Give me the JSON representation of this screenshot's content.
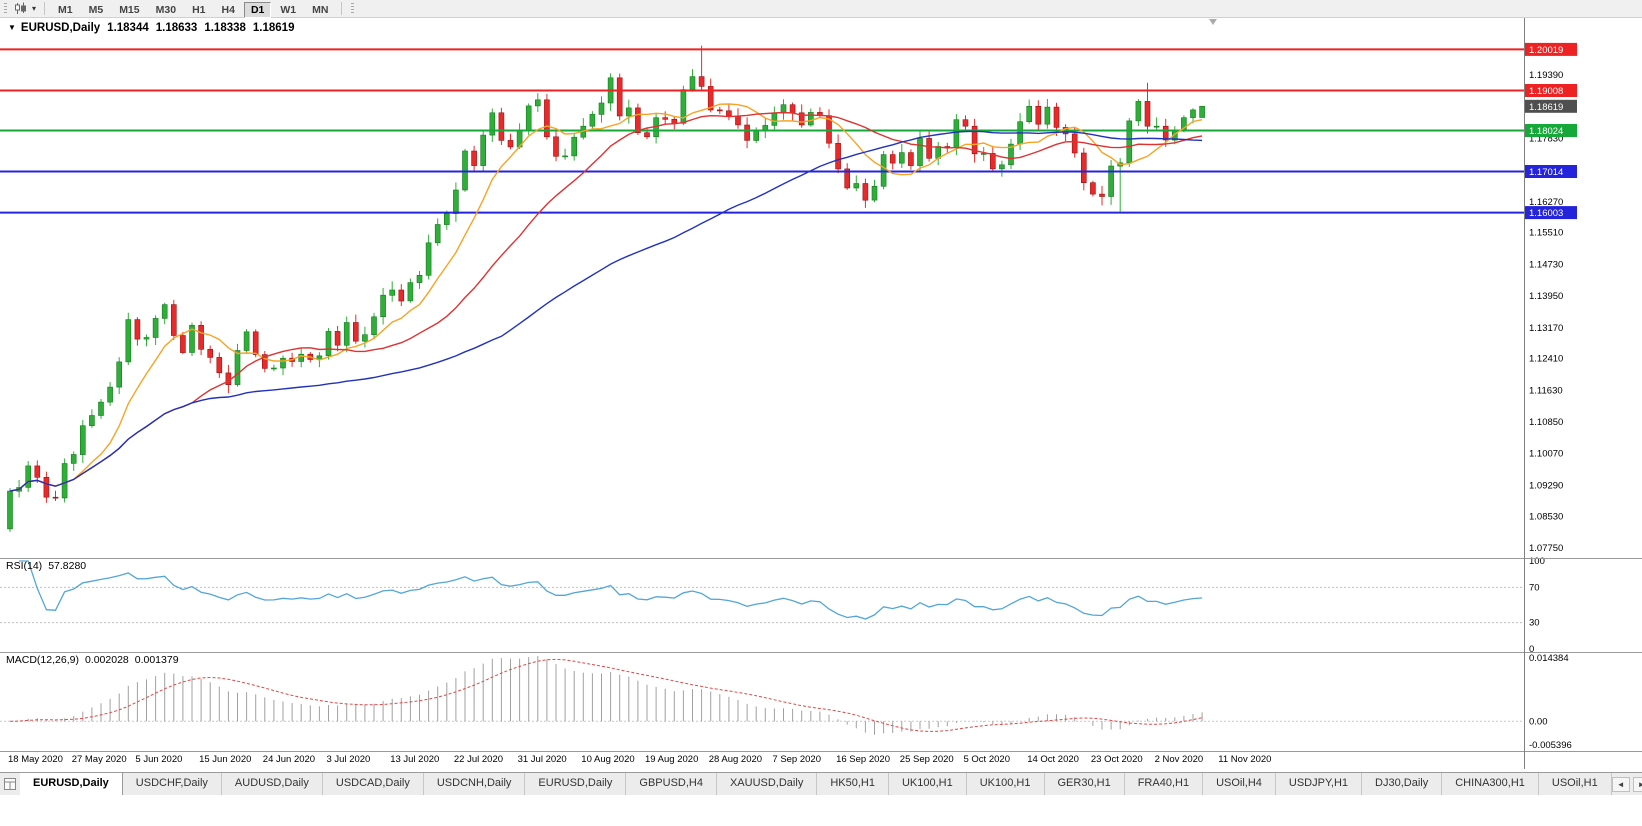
{
  "icons": {
    "title_arrow": "▼",
    "caret": "▾",
    "tab_left": "◄",
    "tab_right": "►"
  },
  "toolbar": {
    "timeframes": [
      {
        "label": "M1",
        "active": false
      },
      {
        "label": "M5",
        "active": false
      },
      {
        "label": "M15",
        "active": false
      },
      {
        "label": "M30",
        "active": false
      },
      {
        "label": "H1",
        "active": false
      },
      {
        "label": "H4",
        "active": false
      },
      {
        "label": "D1",
        "active": true
      },
      {
        "label": "W1",
        "active": false
      },
      {
        "label": "MN",
        "active": false
      }
    ]
  },
  "chart": {
    "title": {
      "symbol": "EURUSD,Daily",
      "open": "1.18344",
      "high": "1.18633",
      "low": "1.18338",
      "close": "1.18619"
    }
  },
  "chart_data": {
    "type": "candlestick",
    "symbol": "EURUSD",
    "timeframe": "Daily",
    "title": "EURUSD,Daily  1.18344 1.18633 1.18338 1.18619",
    "bull_color": "#2fae3a",
    "bull_border": "#157a1e",
    "bear_color": "#ea2a2a",
    "bear_border": "#991111",
    "first_open": 1.0822,
    "closes": [
      1.0915,
      1.0924,
      1.0977,
      1.0949,
      1.09,
      1.0898,
      1.0983,
      1.1005,
      1.1076,
      1.1101,
      1.1134,
      1.1171,
      1.1233,
      1.1337,
      1.1289,
      1.1293,
      1.134,
      1.1374,
      1.1298,
      1.1256,
      1.1323,
      1.1264,
      1.1244,
      1.1206,
      1.1177,
      1.1261,
      1.1307,
      1.1251,
      1.1217,
      1.1218,
      1.1242,
      1.1234,
      1.1252,
      1.1239,
      1.1248,
      1.1308,
      1.1274,
      1.133,
      1.1284,
      1.13,
      1.1344,
      1.1397,
      1.141,
      1.1383,
      1.1428,
      1.1446,
      1.1526,
      1.1571,
      1.1598,
      1.1656,
      1.1752,
      1.1716,
      1.1791,
      1.1846,
      1.1778,
      1.1762,
      1.1803,
      1.1863,
      1.1878,
      1.1787,
      1.1739,
      1.174,
      1.1786,
      1.1813,
      1.1842,
      1.187,
      1.1932,
      1.1838,
      1.1858,
      1.1797,
      1.1787,
      1.1834,
      1.183,
      1.182,
      1.1903,
      1.1935,
      1.1911,
      1.1853,
      1.1851,
      1.1838,
      1.1816,
      1.1778,
      1.1802,
      1.1815,
      1.1845,
      1.1866,
      1.1846,
      1.1816,
      1.1847,
      1.1839,
      1.1771,
      1.1708,
      1.1661,
      1.1672,
      1.1631,
      1.1665,
      1.1743,
      1.1722,
      1.1748,
      1.1716,
      1.1783,
      1.1734,
      1.1763,
      1.1761,
      1.1829,
      1.1813,
      1.1745,
      1.1746,
      1.1708,
      1.1718,
      1.1769,
      1.1824,
      1.1862,
      1.1818,
      1.186,
      1.181,
      1.1794,
      1.1747,
      1.1674,
      1.1646,
      1.164,
      1.1715,
      1.1723,
      1.1826,
      1.1874,
      1.1813,
      1.1813,
      1.1779,
      1.1804,
      1.1834,
      1.1853,
      1.18619
    ],
    "overrides": {
      "76": {
        "h": 1.2011
      },
      "94": {
        "l": 1.1612
      },
      "122": {
        "l": 1.1603
      },
      "125": {
        "h": 1.192,
        "l": 1.1795
      },
      "131": {
        "o": 1.18344,
        "h": 1.18633,
        "l": 1.18338,
        "c": 1.18619
      }
    },
    "x_labels": [
      "18 May 2020",
      "27 May 2020",
      "5 Jun 2020",
      "15 Jun 2020",
      "24 Jun 2020",
      "3 Jul 2020",
      "13 Jul 2020",
      "22 Jul 2020",
      "31 Jul 2020",
      "10 Aug 2020",
      "19 Aug 2020",
      "28 Aug 2020",
      "7 Sep 2020",
      "16 Sep 2020",
      "25 Sep 2020",
      "5 Oct 2020",
      "14 Oct 2020",
      "23 Oct 2020",
      "2 Nov 2020",
      "11 Nov 2020"
    ],
    "price_axis_labels": [
      "1.19390",
      "1.18610",
      "1.17830",
      "1.17050",
      "1.16270",
      "1.15510",
      "1.14730",
      "1.13950",
      "1.13170",
      "1.12410",
      "1.11630",
      "1.10850",
      "1.10070",
      "1.09290",
      "1.08530",
      "1.07750"
    ],
    "levels": [
      {
        "price": 1.20019,
        "label": "1.20019",
        "color": "#ee2222"
      },
      {
        "price": 1.19008,
        "label": "1.19008",
        "color": "#ee2222"
      },
      {
        "price": 1.18024,
        "label": "1.18024",
        "color": "#16a838"
      },
      {
        "price": 1.17014,
        "label": "1.17014",
        "color": "#2424dd"
      },
      {
        "price": 1.16003,
        "label": "1.16003",
        "color": "#2424dd"
      }
    ],
    "current_price": {
      "value": 1.18619,
      "label": "1.18619",
      "badge_color": "#4f4f4f"
    },
    "moving_averages": [
      {
        "period": 8,
        "color": "#f7a325",
        "name": "ma-fast"
      },
      {
        "period": 21,
        "color": "#dd3333",
        "name": "ma-mid"
      },
      {
        "period": 55,
        "color": "#2233bb",
        "name": "ma-slow"
      }
    ],
    "rsi": {
      "label": "RSI(14)",
      "value_text": "57.8280",
      "period": 14,
      "axis_labels": [
        "100",
        "70",
        "30",
        "0"
      ],
      "guide_levels": [
        70,
        30
      ],
      "color": "#53a6d8",
      "range": [
        0,
        100
      ]
    },
    "macd": {
      "label": "MACD(12,26,9)",
      "value_text": "0.002028",
      "signal_text": "0.001379",
      "fast": 12,
      "slow": 26,
      "signal": 9,
      "axis_labels": [
        "0.014384",
        "0.00",
        "-0.005396"
      ],
      "axis_max": 0.014384,
      "axis_min": -0.005396,
      "hist_color": "#a0a0a0",
      "signal_color": "#e04848"
    }
  },
  "tabs": {
    "items": [
      {
        "label": "EURUSD,Daily",
        "active": true
      },
      {
        "label": "USDCHF,Daily",
        "active": false
      },
      {
        "label": "AUDUSD,Daily",
        "active": false
      },
      {
        "label": "USDCAD,Daily",
        "active": false
      },
      {
        "label": "USDCNH,Daily",
        "active": false
      },
      {
        "label": "EURUSD,Daily",
        "active": false
      },
      {
        "label": "GBPUSD,H4",
        "active": false
      },
      {
        "label": "XAUUSD,Daily",
        "active": false
      },
      {
        "label": "HK50,H1",
        "active": false
      },
      {
        "label": "UK100,H1",
        "active": false
      },
      {
        "label": "UK100,H1",
        "active": false
      },
      {
        "label": "GER30,H1",
        "active": false
      },
      {
        "label": "FRA40,H1",
        "active": false
      },
      {
        "label": "USOil,H4",
        "active": false
      },
      {
        "label": "USDJPY,H1",
        "active": false
      },
      {
        "label": "DJ30,Daily",
        "active": false
      },
      {
        "label": "CHINA300,H1",
        "active": false
      },
      {
        "label": "USOil,H1",
        "active": false
      }
    ]
  }
}
